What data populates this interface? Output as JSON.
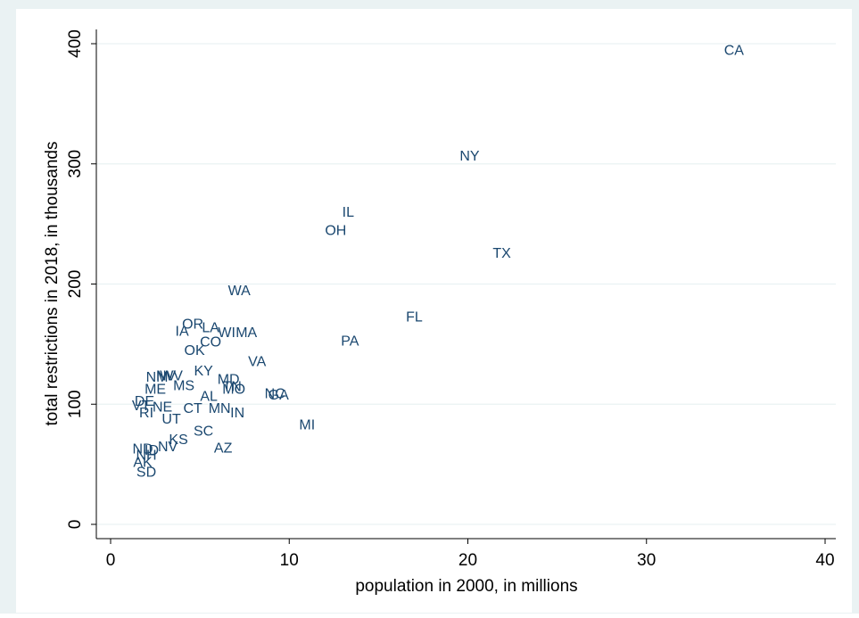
{
  "colors": {
    "outer_background": "#eaf2f3",
    "plot_background": "#ffffff",
    "gridline": "#eaf2f3",
    "axis": "#000000",
    "marker_label": "#1a476f"
  },
  "chart_data": {
    "type": "scatter",
    "title": "",
    "xlabel": "population in 2000, in millions",
    "ylabel": "total restrictions in 2018, in thousands",
    "xlim": [
      0,
      40
    ],
    "ylim": [
      0,
      400
    ],
    "x_ticks": [
      0,
      10,
      20,
      30,
      40
    ],
    "x_tick_labels": [
      "0",
      "10",
      "20",
      "30",
      "40"
    ],
    "y_ticks": [
      0,
      100,
      200,
      300,
      400
    ],
    "y_tick_labels": [
      "0",
      "100",
      "200",
      "300",
      "400"
    ],
    "grid": "horizontal",
    "legend": "none",
    "marker": "label",
    "points": [
      {
        "label": "CA",
        "x": 34.9,
        "y": 394
      },
      {
        "label": "NY",
        "x": 20.1,
        "y": 306
      },
      {
        "label": "IL",
        "x": 13.3,
        "y": 259
      },
      {
        "label": "OH",
        "x": 12.6,
        "y": 244
      },
      {
        "label": "TX",
        "x": 21.9,
        "y": 225
      },
      {
        "label": "WA",
        "x": 7.2,
        "y": 194
      },
      {
        "label": "FL",
        "x": 17.0,
        "y": 172
      },
      {
        "label": "OR",
        "x": 4.6,
        "y": 166
      },
      {
        "label": "LA",
        "x": 5.6,
        "y": 163
      },
      {
        "label": "IA",
        "x": 4.0,
        "y": 160
      },
      {
        "label": "WI",
        "x": 6.5,
        "y": 159
      },
      {
        "label": "MA",
        "x": 7.6,
        "y": 159
      },
      {
        "label": "PA",
        "x": 13.4,
        "y": 152
      },
      {
        "label": "CO",
        "x": 5.6,
        "y": 151
      },
      {
        "label": "OK",
        "x": 4.7,
        "y": 144
      },
      {
        "label": "VA",
        "x": 8.2,
        "y": 135
      },
      {
        "label": "KY",
        "x": 5.2,
        "y": 127
      },
      {
        "label": "NM",
        "x": 2.6,
        "y": 122
      },
      {
        "label": "NV",
        "x": 3.1,
        "y": 123
      },
      {
        "label": "WV",
        "x": 3.4,
        "y": 123
      },
      {
        "label": "MD",
        "x": 6.6,
        "y": 120
      },
      {
        "label": "MS",
        "x": 4.1,
        "y": 115
      },
      {
        "label": "TN",
        "x": 6.8,
        "y": 114
      },
      {
        "label": "ME",
        "x": 2.5,
        "y": 112
      },
      {
        "label": "MO",
        "x": 6.9,
        "y": 112
      },
      {
        "label": "NC",
        "x": 9.2,
        "y": 108
      },
      {
        "label": "GA",
        "x": 9.4,
        "y": 107
      },
      {
        "label": "AL",
        "x": 5.5,
        "y": 106
      },
      {
        "label": "DE",
        "x": 1.9,
        "y": 102
      },
      {
        "label": "VT",
        "x": 1.7,
        "y": 98
      },
      {
        "label": "NE",
        "x": 2.9,
        "y": 97
      },
      {
        "label": "CT",
        "x": 4.6,
        "y": 96
      },
      {
        "label": "MN",
        "x": 6.1,
        "y": 96
      },
      {
        "label": "RI",
        "x": 2.0,
        "y": 92
      },
      {
        "label": "IN",
        "x": 7.1,
        "y": 92
      },
      {
        "label": "UT",
        "x": 3.4,
        "y": 87
      },
      {
        "label": "MI",
        "x": 11.0,
        "y": 82
      },
      {
        "label": "SC",
        "x": 5.2,
        "y": 77
      },
      {
        "label": "KS",
        "x": 3.8,
        "y": 70
      },
      {
        "label": "NV",
        "x": 3.2,
        "y": 64
      },
      {
        "label": "ND",
        "x": 1.8,
        "y": 62
      },
      {
        "label": "ID",
        "x": 2.3,
        "y": 61
      },
      {
        "label": "AZ",
        "x": 6.3,
        "y": 63
      },
      {
        "label": "NH",
        "x": 2.0,
        "y": 57
      },
      {
        "label": "AK",
        "x": 1.8,
        "y": 51
      },
      {
        "label": "SD",
        "x": 2.0,
        "y": 43
      }
    ]
  }
}
